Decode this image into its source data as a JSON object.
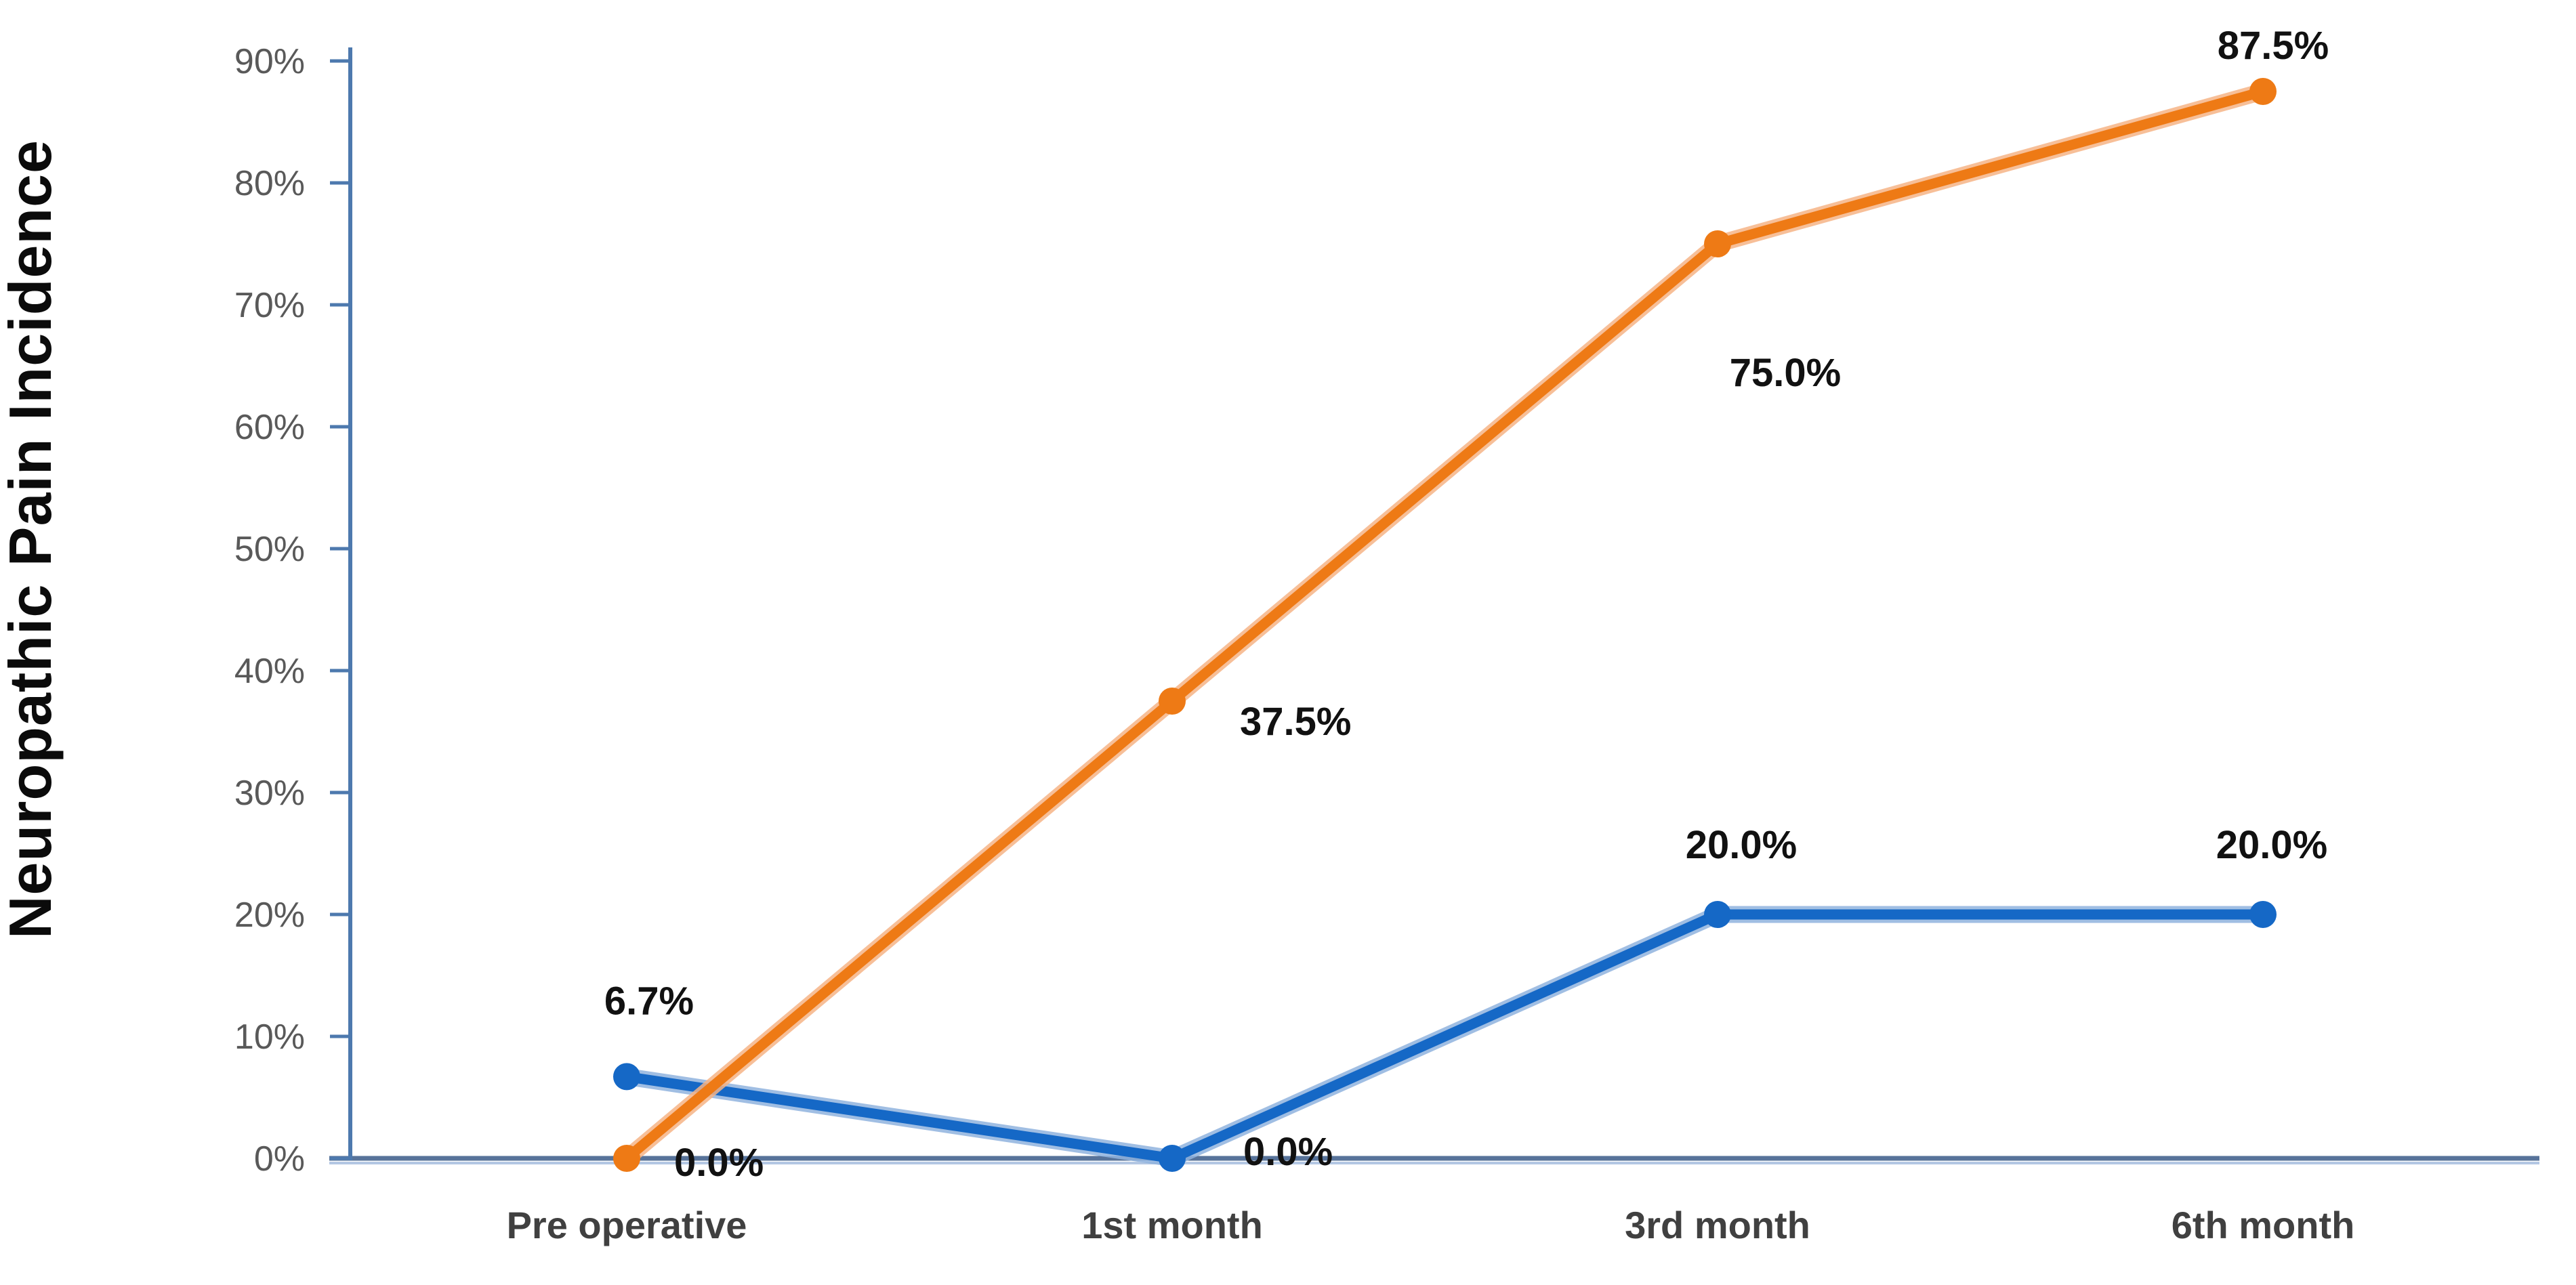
{
  "chart_data": {
    "type": "line",
    "title": "",
    "ylabel": "Neuropathic Pain Incidence",
    "xlabel": "",
    "categories": [
      "Pre operative",
      "1st month",
      "3rd month",
      "6th month"
    ],
    "series": [
      {
        "name": "blue",
        "color": "#1568c6",
        "halo_color": "#8fb3de",
        "values": [
          6.7,
          0.0,
          20.0,
          20.0
        ],
        "data_labels": [
          "6.7%",
          "0.0%",
          "20.0%",
          "20.0%"
        ]
      },
      {
        "name": "orange",
        "color": "#ee7a15",
        "halo_color": "#f6b486",
        "values": [
          0.0,
          37.5,
          75.0,
          87.5
        ],
        "data_labels": [
          "0.0%",
          "37.5%",
          "75.0%",
          "87.5%"
        ]
      }
    ],
    "ylim": [
      0,
      90
    ],
    "ytick_step": 10,
    "yticks": [
      "0%",
      "10%",
      "20%",
      "30%",
      "40%",
      "50%",
      "60%",
      "70%",
      "80%",
      "90%"
    ],
    "grid": false,
    "legend": "none"
  },
  "colors": {
    "background": "#ffffff",
    "blue_series": "#1568c6",
    "orange_series": "#ee7a15",
    "y_axis_line": "#4d79ae",
    "x_axis_line": "#57739a",
    "x_axis_halo": "#b3c7e3",
    "tick_label": "#595959",
    "category_label": "#404040",
    "data_label": "#111111",
    "axis_title": "#0b0b0b"
  }
}
